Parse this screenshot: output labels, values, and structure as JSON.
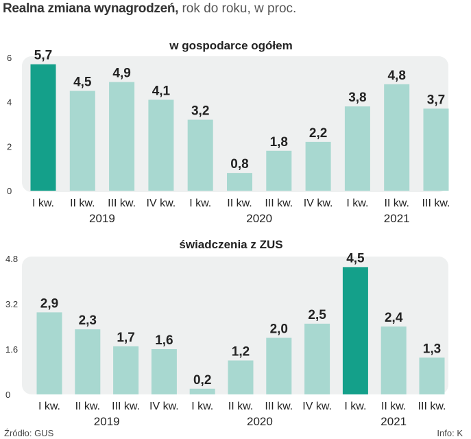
{
  "title": {
    "bold": "Realna zmiana wynagrodzeń,",
    "light": " rok do roku, w proc."
  },
  "source": "Źródło: GUS",
  "credit": "Info: K",
  "colors": {
    "bar": "#a8d8d0",
    "highlight": "#14a08a",
    "panel": "#eef0f0",
    "value_text": "#222222",
    "tick_text": "#333333"
  },
  "chart_data": [
    {
      "type": "bar",
      "title": "w gospodarce ogółem",
      "categories": [
        "I kw.",
        "II kw.",
        "III kw.",
        "IV kw.",
        "I kw.",
        "II kw.",
        "III kw.",
        "IV kw.",
        "I kw.",
        "II kw.",
        "III kw."
      ],
      "values": [
        5.7,
        4.5,
        4.9,
        4.1,
        3.2,
        0.8,
        1.8,
        2.2,
        3.8,
        4.8,
        3.7
      ],
      "value_labels": [
        "5,7",
        "4,5",
        "4,9",
        "4,1",
        "3,2",
        "0,8",
        "1,8",
        "2,2",
        "3,8",
        "4,8",
        "3,7"
      ],
      "highlight_index": 0,
      "years": [
        {
          "label": "2019",
          "start": 0,
          "end": 3
        },
        {
          "label": "2020",
          "start": 4,
          "end": 7
        },
        {
          "label": "2021",
          "start": 8,
          "end": 10
        }
      ],
      "yticks": [
        0,
        2,
        4,
        6
      ],
      "ytick_labels": [
        "0",
        "2",
        "4",
        "6"
      ],
      "ylim": [
        0,
        6
      ],
      "xlabel": "",
      "ylabel": ""
    },
    {
      "type": "bar",
      "title": "świadczenia z ZUS",
      "categories": [
        "I kw.",
        "II kw.",
        "III kw.",
        "IV kw.",
        "I kw.",
        "II kw.",
        "III kw.",
        "IV kw.",
        "I kw.",
        "II kw.",
        "III kw."
      ],
      "values": [
        2.9,
        2.3,
        1.7,
        1.6,
        0.2,
        1.2,
        2.0,
        2.5,
        4.5,
        2.4,
        1.3
      ],
      "value_labels": [
        "2,9",
        "2,3",
        "1,7",
        "1,6",
        "0,2",
        "1,2",
        "2,0",
        "2,5",
        "4,5",
        "2,4",
        "1,3"
      ],
      "highlight_index": 8,
      "years": [
        {
          "label": "2019",
          "start": 0,
          "end": 3
        },
        {
          "label": "2020",
          "start": 4,
          "end": 7
        },
        {
          "label": "2021",
          "start": 8,
          "end": 10
        }
      ],
      "yticks": [
        0,
        1.6,
        3.2,
        4.8
      ],
      "ytick_labels": [
        "0",
        "1.6",
        "3.2",
        "4.8"
      ],
      "ylim": [
        0,
        4.8
      ],
      "xlabel": "",
      "ylabel": ""
    }
  ]
}
